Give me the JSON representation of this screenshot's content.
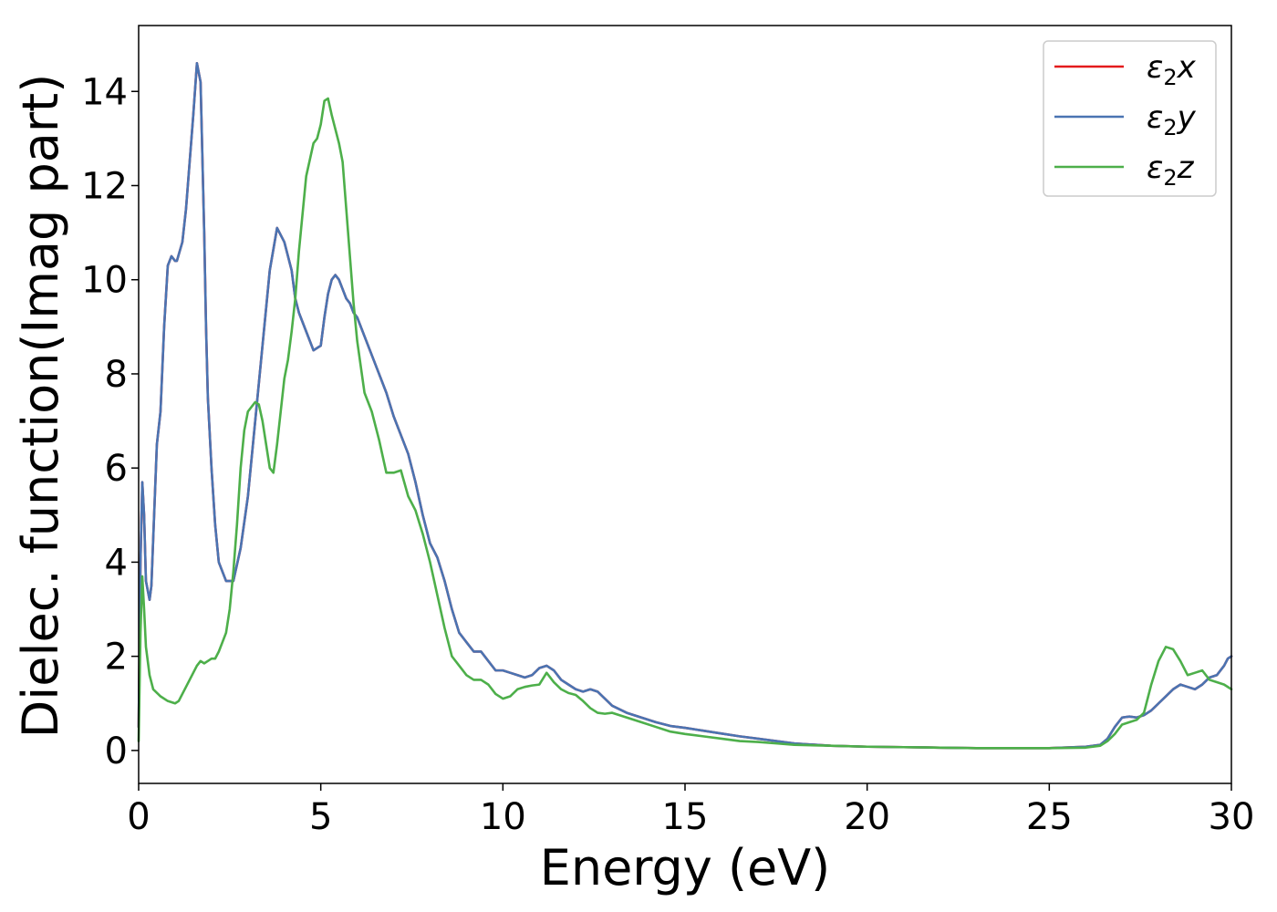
{
  "chart_data": {
    "type": "line",
    "title": "",
    "xlabel": "Energy (eV)",
    "ylabel": "Dielec. function(Imag part)",
    "xlim": [
      0,
      30
    ],
    "ylim": [
      -0.7,
      15.4
    ],
    "xticks": [
      0,
      5,
      10,
      15,
      20,
      25,
      30
    ],
    "yticks": [
      0,
      2,
      4,
      6,
      8,
      10,
      12,
      14
    ],
    "grid": false,
    "legend_position": "top-right",
    "series": [
      {
        "name": "ε2x",
        "legend_main": "ε",
        "legend_sub": "2",
        "legend_var": "x",
        "color": "#e41a1c",
        "x": [
          0,
          0.05,
          0.1,
          0.15,
          0.2,
          0.3,
          0.35,
          0.4,
          0.5,
          0.6,
          0.7,
          0.8,
          0.9,
          1.0,
          1.05,
          1.2,
          1.3,
          1.5,
          1.6,
          1.7,
          1.8,
          1.85,
          1.9,
          2.0,
          2.1,
          2.2,
          2.4,
          2.6,
          2.8,
          3.0,
          3.2,
          3.4,
          3.6,
          3.8,
          4.0,
          4.2,
          4.3,
          4.4,
          4.6,
          4.8,
          5.0,
          5.1,
          5.2,
          5.3,
          5.4,
          5.5,
          5.6,
          5.7,
          5.8,
          5.9,
          6.0,
          6.2,
          6.4,
          6.6,
          6.8,
          7.0,
          7.2,
          7.4,
          7.6,
          7.8,
          8.0,
          8.2,
          8.4,
          8.6,
          8.8,
          9.0,
          9.2,
          9.4,
          9.6,
          9.8,
          10.0,
          10.2,
          10.4,
          10.6,
          10.8,
          11.0,
          11.2,
          11.4,
          11.6,
          11.8,
          12.0,
          12.2,
          12.4,
          12.6,
          12.8,
          13.0,
          13.4,
          13.8,
          14.2,
          14.6,
          15.0,
          15.5,
          16.0,
          16.5,
          17.0,
          17.5,
          18.0,
          19.0,
          20.0,
          21.0,
          22.0,
          23.0,
          24.0,
          25.0,
          26.0,
          26.4,
          26.6,
          26.8,
          27.0,
          27.2,
          27.4,
          27.6,
          27.8,
          28.0,
          28.2,
          28.4,
          28.6,
          28.8,
          29.0,
          29.2,
          29.4,
          29.6,
          29.8,
          29.9,
          30.0
        ],
        "y": [
          0.5,
          4.0,
          5.7,
          5.0,
          3.6,
          3.2,
          3.5,
          4.5,
          6.5,
          7.2,
          9.0,
          10.3,
          10.5,
          10.4,
          10.4,
          10.8,
          11.5,
          13.5,
          14.6,
          14.2,
          11.0,
          9.0,
          7.5,
          6.0,
          4.8,
          4.0,
          3.6,
          3.6,
          4.3,
          5.4,
          7.0,
          8.6,
          10.2,
          11.1,
          10.8,
          10.2,
          9.6,
          9.3,
          8.9,
          8.5,
          8.6,
          9.2,
          9.7,
          10.0,
          10.1,
          10.0,
          9.8,
          9.6,
          9.5,
          9.3,
          9.2,
          8.8,
          8.4,
          8.0,
          7.6,
          7.1,
          6.7,
          6.3,
          5.7,
          5.0,
          4.4,
          4.1,
          3.6,
          3.0,
          2.5,
          2.3,
          2.1,
          2.1,
          1.9,
          1.7,
          1.7,
          1.65,
          1.6,
          1.55,
          1.6,
          1.75,
          1.8,
          1.7,
          1.5,
          1.4,
          1.3,
          1.25,
          1.3,
          1.25,
          1.1,
          0.95,
          0.8,
          0.7,
          0.6,
          0.52,
          0.48,
          0.42,
          0.36,
          0.3,
          0.25,
          0.2,
          0.15,
          0.1,
          0.08,
          0.07,
          0.06,
          0.05,
          0.05,
          0.05,
          0.08,
          0.12,
          0.25,
          0.5,
          0.7,
          0.72,
          0.7,
          0.75,
          0.85,
          1.0,
          1.15,
          1.3,
          1.4,
          1.35,
          1.3,
          1.4,
          1.55,
          1.6,
          1.8,
          1.95,
          2.0
        ]
      },
      {
        "name": "ε2y",
        "legend_main": "ε",
        "legend_sub": "2",
        "legend_var": "y",
        "color": "#4a74b2",
        "x": [
          0,
          0.05,
          0.1,
          0.15,
          0.2,
          0.3,
          0.35,
          0.4,
          0.5,
          0.6,
          0.7,
          0.8,
          0.9,
          1.0,
          1.05,
          1.2,
          1.3,
          1.5,
          1.6,
          1.7,
          1.8,
          1.85,
          1.9,
          2.0,
          2.1,
          2.2,
          2.4,
          2.6,
          2.8,
          3.0,
          3.2,
          3.4,
          3.6,
          3.8,
          4.0,
          4.2,
          4.3,
          4.4,
          4.6,
          4.8,
          5.0,
          5.1,
          5.2,
          5.3,
          5.4,
          5.5,
          5.6,
          5.7,
          5.8,
          5.9,
          6.0,
          6.2,
          6.4,
          6.6,
          6.8,
          7.0,
          7.2,
          7.4,
          7.6,
          7.8,
          8.0,
          8.2,
          8.4,
          8.6,
          8.8,
          9.0,
          9.2,
          9.4,
          9.6,
          9.8,
          10.0,
          10.2,
          10.4,
          10.6,
          10.8,
          11.0,
          11.2,
          11.4,
          11.6,
          11.8,
          12.0,
          12.2,
          12.4,
          12.6,
          12.8,
          13.0,
          13.4,
          13.8,
          14.2,
          14.6,
          15.0,
          15.5,
          16.0,
          16.5,
          17.0,
          17.5,
          18.0,
          19.0,
          20.0,
          21.0,
          22.0,
          23.0,
          24.0,
          25.0,
          26.0,
          26.4,
          26.6,
          26.8,
          27.0,
          27.2,
          27.4,
          27.6,
          27.8,
          28.0,
          28.2,
          28.4,
          28.6,
          28.8,
          29.0,
          29.2,
          29.4,
          29.6,
          29.8,
          29.9,
          30.0
        ],
        "y": [
          0.5,
          4.0,
          5.7,
          5.0,
          3.6,
          3.2,
          3.5,
          4.5,
          6.5,
          7.2,
          9.0,
          10.3,
          10.5,
          10.4,
          10.4,
          10.8,
          11.5,
          13.5,
          14.6,
          14.2,
          11.0,
          9.0,
          7.5,
          6.0,
          4.8,
          4.0,
          3.6,
          3.6,
          4.3,
          5.4,
          7.0,
          8.6,
          10.2,
          11.1,
          10.8,
          10.2,
          9.6,
          9.3,
          8.9,
          8.5,
          8.6,
          9.2,
          9.7,
          10.0,
          10.1,
          10.0,
          9.8,
          9.6,
          9.5,
          9.3,
          9.2,
          8.8,
          8.4,
          8.0,
          7.6,
          7.1,
          6.7,
          6.3,
          5.7,
          5.0,
          4.4,
          4.1,
          3.6,
          3.0,
          2.5,
          2.3,
          2.1,
          2.1,
          1.9,
          1.7,
          1.7,
          1.65,
          1.6,
          1.55,
          1.6,
          1.75,
          1.8,
          1.7,
          1.5,
          1.4,
          1.3,
          1.25,
          1.3,
          1.25,
          1.1,
          0.95,
          0.8,
          0.7,
          0.6,
          0.52,
          0.48,
          0.42,
          0.36,
          0.3,
          0.25,
          0.2,
          0.15,
          0.1,
          0.08,
          0.07,
          0.06,
          0.05,
          0.05,
          0.05,
          0.08,
          0.12,
          0.25,
          0.5,
          0.7,
          0.72,
          0.7,
          0.75,
          0.85,
          1.0,
          1.15,
          1.3,
          1.4,
          1.35,
          1.3,
          1.4,
          1.55,
          1.6,
          1.8,
          1.95,
          2.0
        ]
      },
      {
        "name": "ε2z",
        "legend_main": "ε",
        "legend_sub": "2",
        "legend_var": "z",
        "color": "#4daf4a",
        "x": [
          0,
          0.05,
          0.1,
          0.15,
          0.2,
          0.3,
          0.4,
          0.6,
          0.8,
          1.0,
          1.1,
          1.2,
          1.4,
          1.6,
          1.7,
          1.8,
          1.9,
          2.0,
          2.1,
          2.2,
          2.3,
          2.4,
          2.5,
          2.6,
          2.7,
          2.8,
          2.9,
          3.0,
          3.1,
          3.2,
          3.3,
          3.4,
          3.5,
          3.6,
          3.7,
          3.8,
          3.9,
          4.0,
          4.1,
          4.2,
          4.3,
          4.4,
          4.6,
          4.8,
          4.9,
          5.0,
          5.1,
          5.2,
          5.3,
          5.4,
          5.5,
          5.6,
          5.7,
          5.8,
          5.9,
          6.0,
          6.2,
          6.4,
          6.6,
          6.8,
          7.0,
          7.2,
          7.4,
          7.6,
          7.8,
          8.0,
          8.2,
          8.4,
          8.6,
          8.8,
          9.0,
          9.2,
          9.4,
          9.6,
          9.8,
          10.0,
          10.2,
          10.4,
          10.6,
          10.8,
          11.0,
          11.2,
          11.4,
          11.6,
          11.8,
          12.0,
          12.2,
          12.4,
          12.6,
          12.8,
          13.0,
          13.4,
          13.8,
          14.2,
          14.6,
          15.0,
          15.5,
          16.0,
          16.5,
          17.0,
          17.5,
          18.0,
          19.0,
          20.0,
          21.0,
          22.0,
          23.0,
          24.0,
          25.0,
          26.0,
          26.4,
          26.6,
          26.8,
          27.0,
          27.2,
          27.4,
          27.6,
          27.8,
          28.0,
          28.2,
          28.4,
          28.6,
          28.8,
          29.0,
          29.2,
          29.4,
          29.6,
          29.8,
          30.0
        ],
        "y": [
          0.2,
          2.5,
          3.7,
          3.0,
          2.2,
          1.6,
          1.3,
          1.15,
          1.05,
          1.0,
          1.05,
          1.2,
          1.5,
          1.8,
          1.9,
          1.85,
          1.9,
          1.95,
          1.95,
          2.1,
          2.3,
          2.5,
          3.0,
          3.8,
          4.8,
          6.0,
          6.8,
          7.2,
          7.3,
          7.4,
          7.35,
          7.0,
          6.5,
          6.0,
          5.9,
          6.5,
          7.2,
          7.9,
          8.3,
          8.9,
          9.6,
          10.6,
          12.2,
          12.9,
          13.0,
          13.3,
          13.8,
          13.85,
          13.5,
          13.2,
          12.9,
          12.5,
          11.5,
          10.5,
          9.5,
          8.7,
          7.6,
          7.2,
          6.6,
          5.9,
          5.9,
          5.95,
          5.4,
          5.1,
          4.6,
          4.0,
          3.3,
          2.6,
          2.0,
          1.8,
          1.6,
          1.5,
          1.5,
          1.4,
          1.2,
          1.1,
          1.15,
          1.3,
          1.35,
          1.38,
          1.4,
          1.65,
          1.45,
          1.3,
          1.22,
          1.18,
          1.05,
          0.9,
          0.8,
          0.78,
          0.8,
          0.7,
          0.6,
          0.5,
          0.4,
          0.35,
          0.3,
          0.25,
          0.2,
          0.18,
          0.15,
          0.12,
          0.1,
          0.08,
          0.07,
          0.06,
          0.05,
          0.05,
          0.05,
          0.06,
          0.1,
          0.2,
          0.35,
          0.55,
          0.6,
          0.65,
          0.8,
          1.4,
          1.9,
          2.2,
          2.15,
          1.9,
          1.6,
          1.65,
          1.7,
          1.5,
          1.45,
          1.4,
          1.3
        ]
      }
    ]
  }
}
